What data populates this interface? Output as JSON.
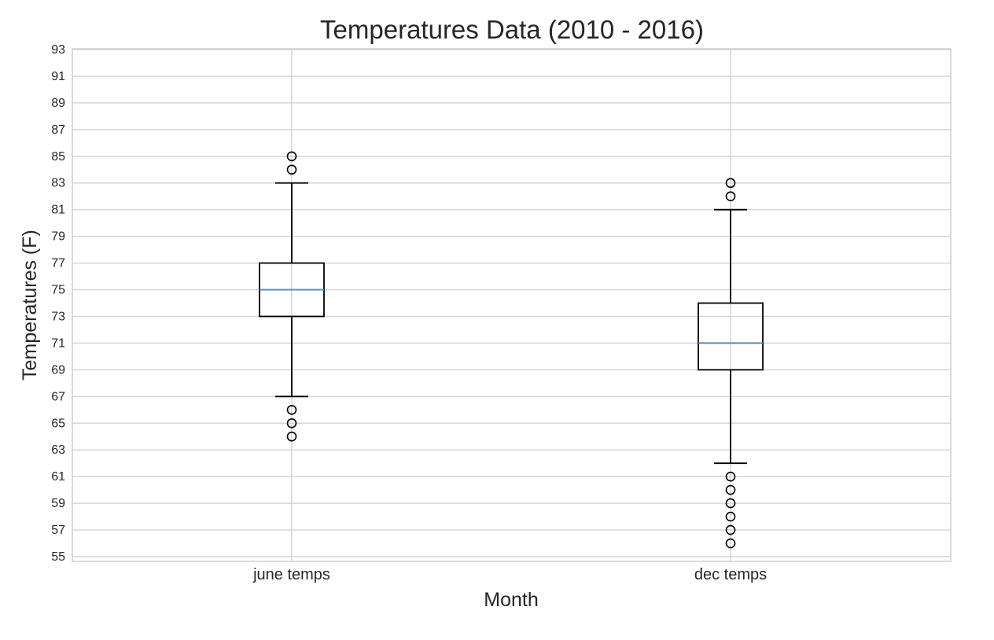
{
  "chart_data": {
    "type": "boxplot",
    "title": "Temperatures Data (2010 - 2016)",
    "xlabel": "Month",
    "ylabel": "Temperatures (F)",
    "ylim": [
      55,
      93
    ],
    "yticks": [
      55,
      57,
      59,
      61,
      63,
      65,
      67,
      69,
      71,
      73,
      75,
      77,
      79,
      81,
      83,
      85,
      87,
      89,
      91,
      93
    ],
    "grid": true,
    "legend": "none",
    "categories": [
      "june temps",
      "dec temps"
    ],
    "series": [
      {
        "category": "june temps",
        "whisker_low": 67,
        "q1": 73,
        "median": 75,
        "q3": 77,
        "whisker_high": 83,
        "outliers": [
          85,
          84,
          66,
          65,
          64
        ]
      },
      {
        "category": "dec temps",
        "whisker_low": 62,
        "q1": 69,
        "median": 71,
        "q3": 74,
        "whisker_high": 81,
        "outliers": [
          83,
          82,
          61,
          60,
          59,
          58,
          57,
          56
        ]
      }
    ],
    "colors": {
      "box": "#000000",
      "median": "#4c8fc0",
      "grid": "#d6d6d6",
      "frame": "#cfcfcf",
      "flier": "#000000"
    }
  }
}
